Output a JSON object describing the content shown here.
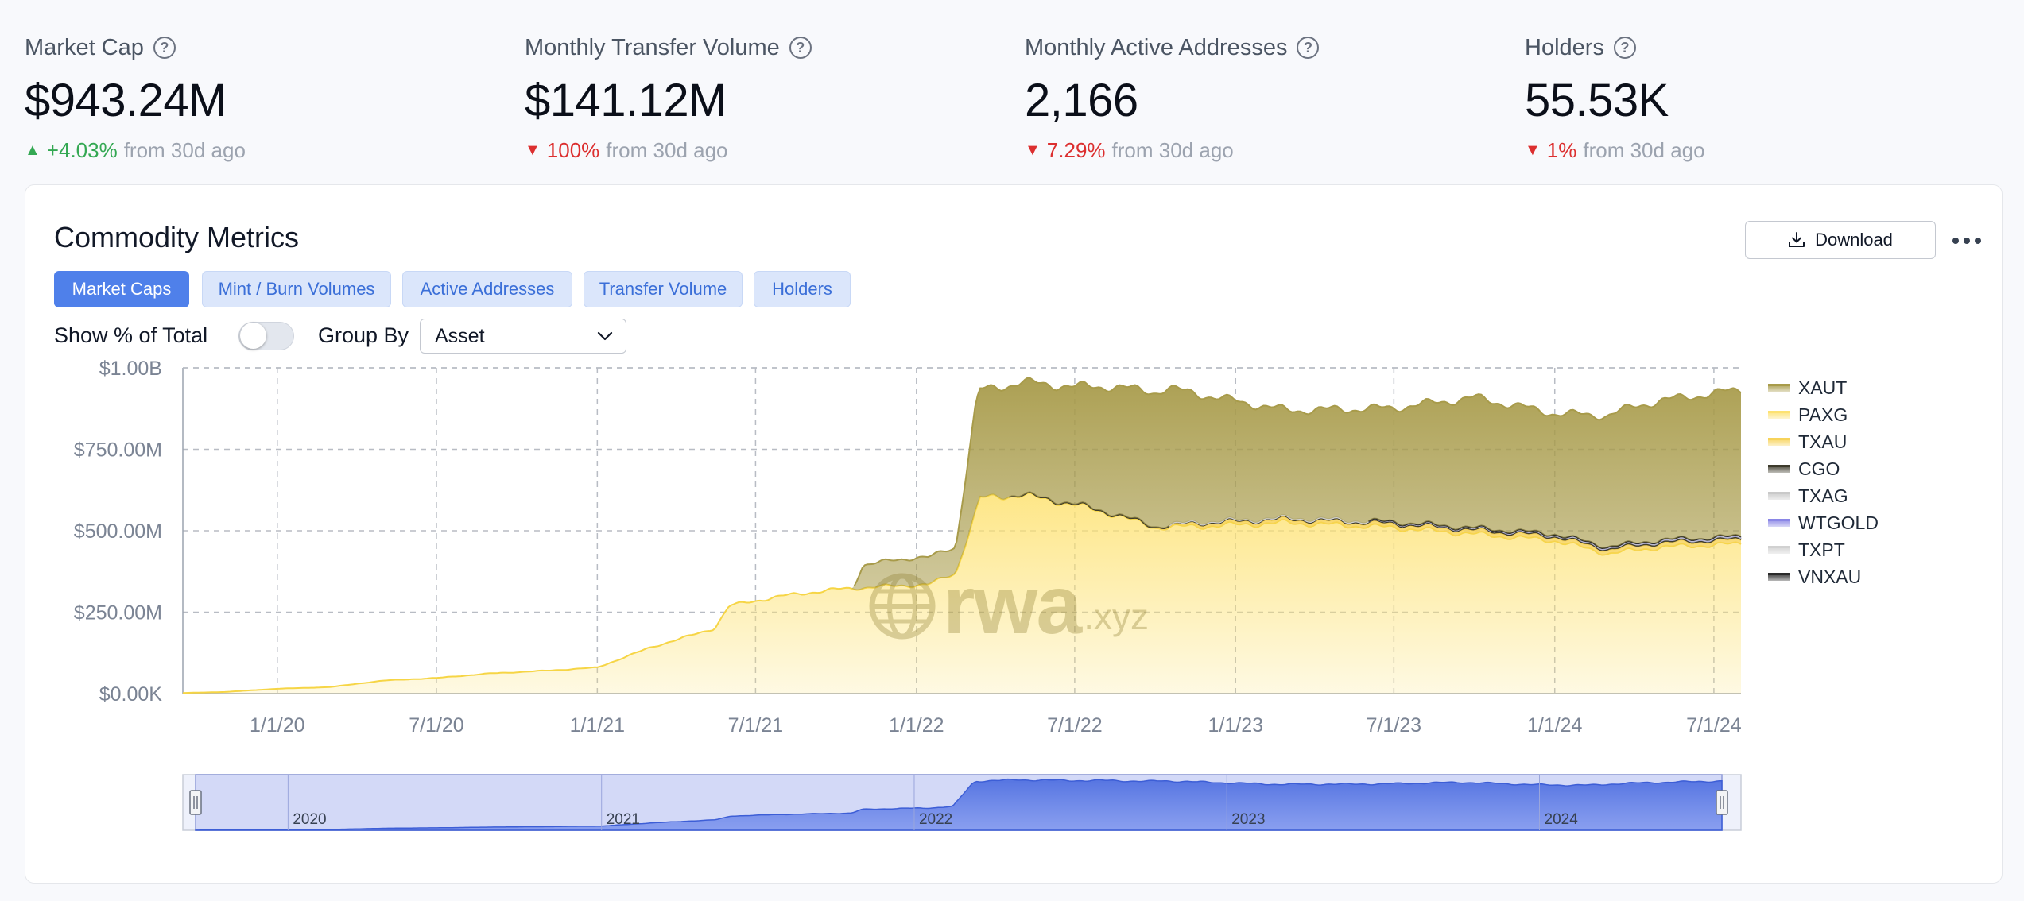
{
  "stats": [
    {
      "label": "Market Cap",
      "value": "$943.24M",
      "delta": "+4.03%",
      "direction": "up",
      "suffix": "from 30d ago"
    },
    {
      "label": "Monthly Transfer Volume",
      "value": "$141.12M",
      "delta": "100%",
      "direction": "down",
      "suffix": "from 30d ago"
    },
    {
      "label": "Monthly Active Addresses",
      "value": "2,166",
      "delta": "7.29%",
      "direction": "down",
      "suffix": "from 30d ago"
    },
    {
      "label": "Holders",
      "value": "55.53K",
      "delta": "1%",
      "direction": "down",
      "suffix": "from 30d ago"
    }
  ],
  "card": {
    "title": "Commodity Metrics",
    "download_label": "Download",
    "tabs": [
      "Market Caps",
      "Mint / Burn Volumes",
      "Active Addresses",
      "Transfer Volume",
      "Holders"
    ],
    "active_tab": 0,
    "show_pct_label": "Show % of Total",
    "group_by_label": "Group By",
    "group_by_value": "Asset",
    "watermark": {
      "main": "rwa",
      "suffix": ".xyz"
    }
  },
  "chart_data": {
    "type": "area",
    "stacked": true,
    "y_ticks": [
      "$0.00K",
      "$250.00M",
      "$500.00M",
      "$750.00M",
      "$1.00B"
    ],
    "ylim": [
      0,
      1000
    ],
    "y_units": "USD millions",
    "x_ticks": [
      "1/1/20",
      "7/1/20",
      "1/1/21",
      "7/1/21",
      "1/1/22",
      "7/1/22",
      "1/1/23",
      "7/1/23",
      "1/1/24",
      "7/1/24"
    ],
    "xlim": [
      "2019-09-15",
      "2024-08-01"
    ],
    "grid": true,
    "legend_position": "right",
    "series": [
      {
        "name": "XAUT",
        "color": "#a89b4a",
        "points": [
          [
            "2021-10-20",
            0
          ],
          [
            "2021-11-01",
            70
          ],
          [
            "2022-01-01",
            85
          ],
          [
            "2022-02-15",
            80
          ],
          [
            "2022-03-10",
            330
          ],
          [
            "2022-07-01",
            360
          ],
          [
            "2022-08-15",
            390
          ],
          [
            "2022-10-15",
            420
          ],
          [
            "2022-12-01",
            385
          ],
          [
            "2023-03-01",
            330
          ],
          [
            "2023-07-01",
            350
          ],
          [
            "2023-10-01",
            400
          ],
          [
            "2024-01-01",
            370
          ],
          [
            "2024-04-01",
            420
          ],
          [
            "2024-08-01",
            450
          ]
        ]
      },
      {
        "name": "PAXG",
        "color": "#fde272",
        "points": [
          [
            "2019-09-15",
            2
          ],
          [
            "2019-11-01",
            5
          ],
          [
            "2020-01-01",
            15
          ],
          [
            "2020-03-01",
            20
          ],
          [
            "2020-05-01",
            40
          ],
          [
            "2020-07-01",
            48
          ],
          [
            "2020-09-01",
            62
          ],
          [
            "2020-11-01",
            70
          ],
          [
            "2021-01-01",
            80
          ],
          [
            "2021-03-01",
            140
          ],
          [
            "2021-05-15",
            200
          ],
          [
            "2021-06-01",
            270
          ],
          [
            "2021-08-01",
            300
          ],
          [
            "2021-10-01",
            320
          ],
          [
            "2021-12-01",
            330
          ],
          [
            "2022-01-15",
            335
          ],
          [
            "2022-02-15",
            370
          ],
          [
            "2022-03-15",
            600
          ],
          [
            "2022-05-01",
            610
          ],
          [
            "2022-07-01",
            580
          ],
          [
            "2022-08-15",
            550
          ],
          [
            "2022-10-01",
            510
          ],
          [
            "2022-12-01",
            515
          ],
          [
            "2023-03-01",
            525
          ],
          [
            "2023-07-01",
            510
          ],
          [
            "2023-10-01",
            490
          ],
          [
            "2024-01-01",
            470
          ],
          [
            "2024-03-01",
            430
          ],
          [
            "2024-05-01",
            450
          ],
          [
            "2024-08-01",
            460
          ]
        ]
      },
      {
        "name": "TXAU",
        "color": "#f7d35a",
        "points": [
          [
            "2022-10-01",
            0
          ],
          [
            "2022-11-15",
            8
          ],
          [
            "2023-07-01",
            10
          ],
          [
            "2024-08-01",
            12
          ]
        ]
      },
      {
        "name": "CGO",
        "color": "#3c3a2b",
        "points": [
          [
            "2022-04-15",
            0
          ],
          [
            "2022-05-01",
            2
          ],
          [
            "2023-01-01",
            3
          ],
          [
            "2024-08-01",
            4
          ]
        ]
      },
      {
        "name": "TXAG",
        "color": "#c9c9c9",
        "points": [
          [
            "2022-10-15",
            0
          ],
          [
            "2022-11-15",
            2
          ],
          [
            "2024-08-01",
            3
          ]
        ]
      },
      {
        "name": "WTGOLD",
        "color": "#8a86e6",
        "points": [
          [
            "2023-06-01",
            0
          ],
          [
            "2024-08-01",
            1
          ]
        ]
      },
      {
        "name": "TXPT",
        "color": "#d1d1d1",
        "points": [
          [
            "2022-10-15",
            0
          ],
          [
            "2024-08-01",
            1
          ]
        ]
      },
      {
        "name": "VNXAU",
        "color": "#2a2a2a",
        "points": [
          [
            "2023-06-01",
            0
          ],
          [
            "2023-07-01",
            1
          ],
          [
            "2024-08-01",
            2
          ]
        ]
      }
    ],
    "navigator": {
      "years": [
        "2020",
        "2021",
        "2022",
        "2023",
        "2024"
      ]
    }
  }
}
